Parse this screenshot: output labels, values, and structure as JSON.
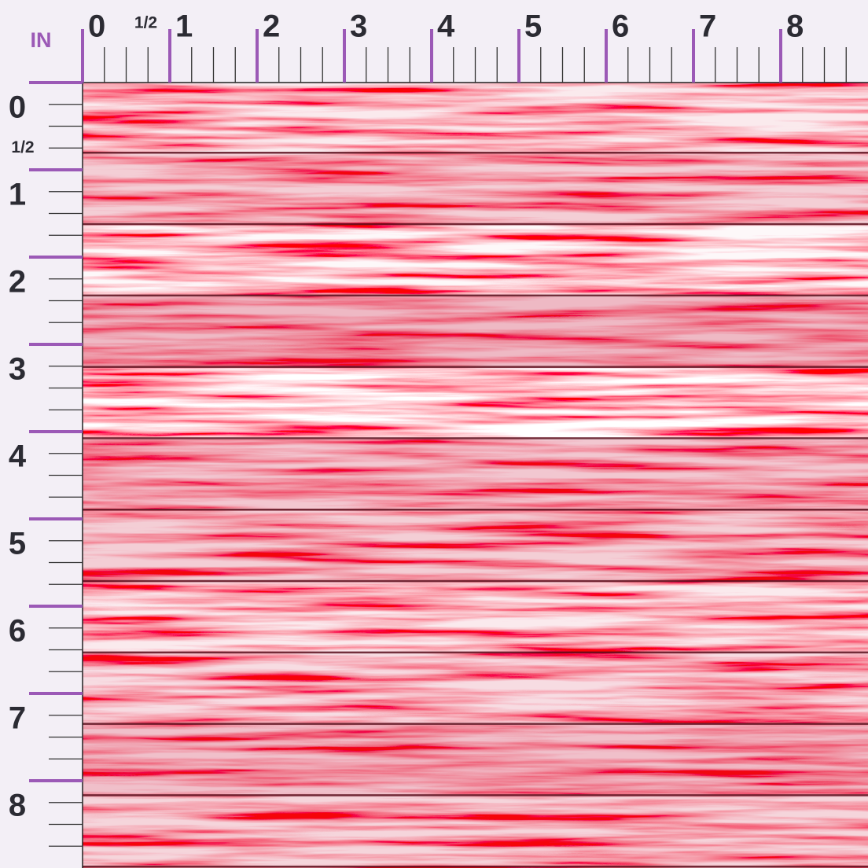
{
  "unit": "IN",
  "top_ruler": {
    "labels": [
      "0",
      "1/2",
      "1",
      "2",
      "3",
      "4",
      "5",
      "6",
      "7",
      "8"
    ]
  },
  "left_ruler": {
    "labels": [
      "0",
      "1/2",
      "1",
      "2",
      "3",
      "4",
      "5",
      "6",
      "7",
      "8"
    ]
  }
}
